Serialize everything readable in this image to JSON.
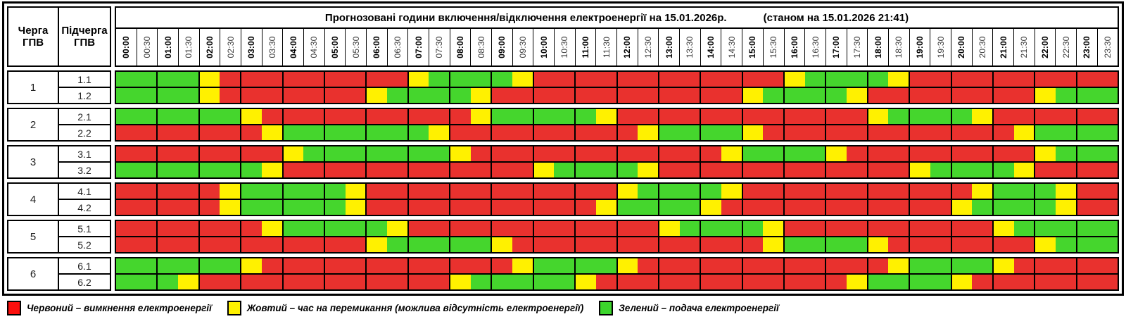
{
  "header": {
    "col1": "Черга ГПВ",
    "col2": "Підчерга ГПВ",
    "title_main": "Прогнозовані години включення/відключення електроенергії на 15.01.2026р.",
    "title_note": "(станом на 15.01.2026 21:41)"
  },
  "chart_data": {
    "type": "heatmap",
    "x_labels": [
      "00:00",
      "00:30",
      "01:00",
      "01:30",
      "02:00",
      "02:30",
      "03:00",
      "03:30",
      "04:00",
      "04:30",
      "05:00",
      "05:30",
      "06:00",
      "06:30",
      "07:00",
      "07:30",
      "08:00",
      "08:30",
      "09:00",
      "09:30",
      "10:00",
      "10:30",
      "11:00",
      "11:30",
      "12:00",
      "12:30",
      "13:00",
      "13:30",
      "14:00",
      "14:30",
      "15:00",
      "15:30",
      "16:00",
      "16:30",
      "17:00",
      "17:30",
      "18:00",
      "18:30",
      "19:00",
      "19:30",
      "20:00",
      "20:30",
      "21:00",
      "21:30",
      "22:00",
      "22:30",
      "23:00",
      "23:30"
    ],
    "value_colors": {
      "R": "#e9312e",
      "Y": "#fff100",
      "G": "#45d62d"
    },
    "value_meanings": {
      "R": "вимкнення електроенергії",
      "Y": "час на перемикання (можлива відсутність електроенергії)",
      "G": "подача електроенергії"
    },
    "rows": [
      {
        "queue": "1",
        "subqueue": "1.1",
        "slots": "GGGGYRRRRRRRRRYGGGGYRRRRRRRRRRRRYGGGGYRRRRRRRRRR"
      },
      {
        "queue": "1",
        "subqueue": "1.2",
        "slots": "GGGGYRRRRRRRYGGGGYRRRRRRRRRRRRYGGGGYRRRRRRRRYGGG"
      },
      {
        "queue": "2",
        "subqueue": "2.1",
        "slots": "GGGGGGYRRRRRRRRRRYGGGGGYRRRRRRRRRRRRYGGGGYRRRRRR"
      },
      {
        "queue": "2",
        "subqueue": "2.2",
        "slots": "RRRRRRRYGGGGGGGYRRRRRRRRRYGGGGYRRRRRRRRRRRRYGGGG"
      },
      {
        "queue": "3",
        "subqueue": "3.1",
        "slots": "RRRRRRRRYGGGGGGGYRRRRRRRRRRRRYGGGGYRRRRRRRRRYGGG"
      },
      {
        "queue": "3",
        "subqueue": "3.2",
        "slots": "GGGGGGGYRRRRRRRRRRRRYGGGGYRRRRRRRRRRRRYGGGGYRRRR"
      },
      {
        "queue": "4",
        "subqueue": "4.1",
        "slots": "RRRRRYGGGGGYRRRRRRRRRRRRYGGGGYRRRRRRRRRRRYGGGYRR"
      },
      {
        "queue": "4",
        "subqueue": "4.2",
        "slots": "RRRRRYGGGGGYRRRRRRRRRRRYGGGGYRRRRRRRRRRRYGGGGYRR"
      },
      {
        "queue": "5",
        "subqueue": "5.1",
        "slots": "RRRRRRRYGGGGGYRRRRRRRRRRRRYGGGGYRRRRRRRRRRYGGGGG"
      },
      {
        "queue": "5",
        "subqueue": "5.2",
        "slots": "RRRRRRRRRRRRYGGGGGYRRRRRRRRRRRRYGGGGYRRRRRRRYGGG"
      },
      {
        "queue": "6",
        "subqueue": "6.1",
        "slots": "GGGGGGYRRRRRRRRRRRRYGGGGYRRRRRRRRRRRRYGGGGYRRRRR"
      },
      {
        "queue": "6",
        "subqueue": "6.2",
        "slots": "GGGYRRRRRRRRRRRRYGGGGGYRRRRRRRRRRRRYGGGGYRRRRRRR"
      }
    ]
  },
  "legend": {
    "items": [
      {
        "color": "#fb0f0c",
        "label": "Червоний – вимкнення електроенергії"
      },
      {
        "color": "#fff100",
        "label": "Жовтий – час на перемикання (можлива відсутність електроенергії)"
      },
      {
        "color": "#3cd52c",
        "label": "Зелений – подача електроенергії"
      }
    ]
  }
}
